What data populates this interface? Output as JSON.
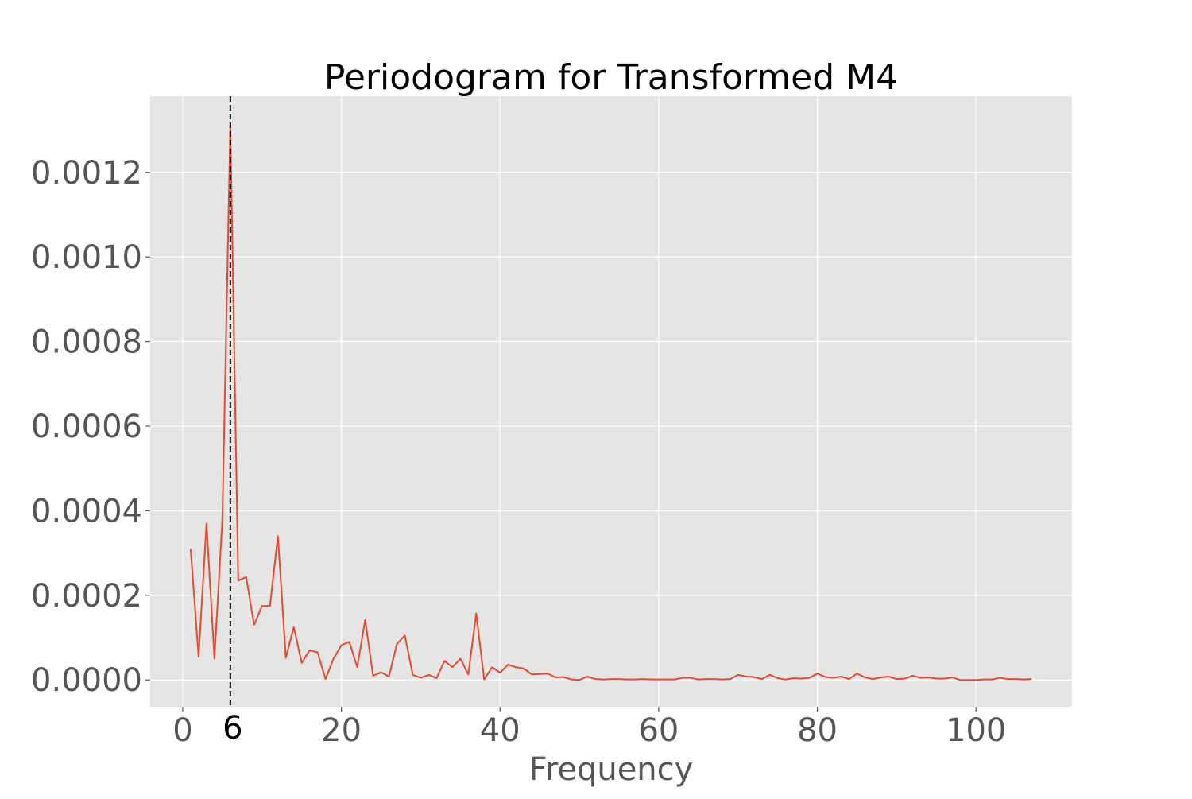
{
  "chart_data": {
    "type": "line",
    "title": "Periodogram for Transformed M4",
    "xlabel": "Frequency",
    "ylabel": "",
    "xlim": [
      -4.1,
      112.1
    ],
    "ylim": [
      -6.35e-05,
      0.00138
    ],
    "x_ticks": [
      0,
      20,
      40,
      60,
      80,
      100
    ],
    "x_tick_labels": [
      "0",
      "20",
      "40",
      "60",
      "80",
      "100"
    ],
    "y_ticks": [
      0.0,
      0.0002,
      0.0004,
      0.0006,
      0.0008,
      0.001,
      0.0012
    ],
    "y_tick_labels": [
      "0.0000",
      "0.0002",
      "0.0004",
      "0.0006",
      "0.0008",
      "0.0010",
      "0.0012"
    ],
    "grid": true,
    "background_color": "#e5e5e5",
    "grid_color": "#ffffff",
    "series": [
      {
        "color": "#e24a33",
        "x_start": 1,
        "x_step": 1,
        "values": [
          0.00031,
          5.5e-05,
          0.00037,
          5e-05,
          0.00038,
          0.00131,
          0.000235,
          0.000243,
          0.00013,
          0.000175,
          0.000175,
          0.00034,
          5.2e-05,
          0.000125,
          4e-05,
          7e-05,
          6.5e-05,
          2e-06,
          5e-05,
          8.2e-05,
          9e-05,
          3e-05,
          0.000142,
          1e-05,
          1.8e-05,
          8e-06,
          8.5e-05,
          0.000105,
          1.2e-05,
          5e-06,
          1.2e-05,
          4e-06,
          4.5e-05,
          3e-05,
          5e-05,
          1.3e-05,
          0.000157,
          1e-06,
          3e-05,
          1.7e-05,
          3.6e-05,
          3e-05,
          2.7e-05,
          1.3e-05,
          1.4e-05,
          1.5e-05,
          6e-06,
          7e-06,
          1e-06,
          0.0,
          8e-06,
          2e-06,
          1e-06,
          2e-06,
          2e-06,
          1e-06,
          1e-06,
          2e-06,
          1e-06,
          1e-06,
          1e-06,
          1e-06,
          5e-06,
          5e-06,
          1e-06,
          2e-06,
          2e-06,
          1e-06,
          2e-06,
          1.2e-05,
          8e-06,
          7e-06,
          2e-06,
          1.2e-05,
          4e-06,
          1e-06,
          4e-06,
          3e-06,
          5e-06,
          1.5e-05,
          7e-06,
          5e-06,
          8e-06,
          2e-06,
          1.5e-05,
          6e-06,
          2e-06,
          6e-06,
          8e-06,
          2e-06,
          3e-06,
          1e-05,
          5e-06,
          6e-06,
          3e-06,
          3e-06,
          6e-06,
          0.0,
          0.0,
          0.0,
          1e-06,
          1e-06,
          5e-06,
          2e-06,
          2e-06,
          1e-06,
          2e-06
        ]
      }
    ],
    "annotations": [
      {
        "type": "vline",
        "x": 6,
        "style": "dashed",
        "color": "#000000",
        "label": "6"
      }
    ]
  }
}
